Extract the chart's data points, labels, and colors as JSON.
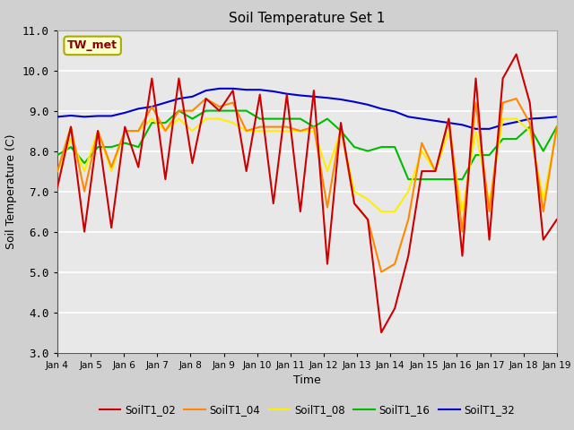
{
  "title": "Soil Temperature Set 1",
  "xlabel": "Time",
  "ylabel": "Soil Temperature (C)",
  "ylim": [
    3.0,
    11.0
  ],
  "yticks": [
    3.0,
    4.0,
    5.0,
    6.0,
    7.0,
    8.0,
    9.0,
    10.0,
    11.0
  ],
  "xtick_labels": [
    "Jan 4",
    "Jan 5",
    "Jan 6",
    "Jan 7",
    "Jan 8",
    "Jan 9",
    "Jan 10",
    "Jan 11",
    "Jan 12",
    "Jan 13",
    "Jan 14",
    "Jan 15",
    "Jan 16",
    "Jan 17",
    "Jan 18",
    "Jan 19"
  ],
  "annotation_text": "TW_met",
  "annotation_color": "#8B0000",
  "series_colors": {
    "SoilT1_02": "#cc0000",
    "SoilT1_04": "#ff8800",
    "SoilT1_08": "#ffee00",
    "SoilT1_16": "#00bb00",
    "SoilT1_32": "#0000cc"
  },
  "legend_labels": [
    "SoilT1_02",
    "SoilT1_04",
    "SoilT1_08",
    "SoilT1_16",
    "SoilT1_32"
  ],
  "fig_bg_color": "#d0d0d0",
  "plot_bg_color": "#e8e8e8",
  "SoilT1_02": [
    7.1,
    8.6,
    6.0,
    8.5,
    6.1,
    8.6,
    7.6,
    9.8,
    7.3,
    9.8,
    7.7,
    9.3,
    9.0,
    9.5,
    7.5,
    9.4,
    6.7,
    9.4,
    6.5,
    9.5,
    5.2,
    8.7,
    6.7,
    6.3,
    3.5,
    4.1,
    5.4,
    7.5,
    7.5,
    8.8,
    5.4,
    9.8,
    5.8,
    9.8,
    10.4,
    9.2,
    5.8,
    6.3
  ],
  "SoilT1_04": [
    7.5,
    8.6,
    7.0,
    8.5,
    7.6,
    8.5,
    8.5,
    9.1,
    8.5,
    9.0,
    9.0,
    9.3,
    9.1,
    9.2,
    8.5,
    8.6,
    8.6,
    8.6,
    8.5,
    8.6,
    6.6,
    8.6,
    6.7,
    6.3,
    5.0,
    5.2,
    6.3,
    8.2,
    7.5,
    8.8,
    6.0,
    9.2,
    6.5,
    9.2,
    9.3,
    8.7,
    6.5,
    8.6
  ],
  "SoilT1_08": [
    7.5,
    8.3,
    7.5,
    8.5,
    7.5,
    8.5,
    8.5,
    8.8,
    8.5,
    8.8,
    8.5,
    8.8,
    8.8,
    8.7,
    8.5,
    8.5,
    8.5,
    8.5,
    8.5,
    8.5,
    7.5,
    8.5,
    7.0,
    6.8,
    6.5,
    6.5,
    7.0,
    8.0,
    7.5,
    8.5,
    6.5,
    8.5,
    6.7,
    8.8,
    8.8,
    8.5,
    6.8,
    8.5
  ],
  "SoilT1_16": [
    7.9,
    8.1,
    7.7,
    8.1,
    8.1,
    8.2,
    8.1,
    8.7,
    8.7,
    9.0,
    8.8,
    9.0,
    9.0,
    9.0,
    9.0,
    8.8,
    8.8,
    8.8,
    8.8,
    8.6,
    8.8,
    8.5,
    8.1,
    8.0,
    8.1,
    8.1,
    7.3,
    7.3,
    7.3,
    7.3,
    7.3,
    7.9,
    7.9,
    8.3,
    8.3,
    8.6,
    8.0,
    8.6
  ],
  "SoilT1_32": [
    8.85,
    8.88,
    8.85,
    8.87,
    8.87,
    8.95,
    9.05,
    9.1,
    9.2,
    9.3,
    9.35,
    9.5,
    9.55,
    9.55,
    9.52,
    9.52,
    9.48,
    9.42,
    9.38,
    9.35,
    9.32,
    9.28,
    9.22,
    9.15,
    9.05,
    8.98,
    8.85,
    8.8,
    8.75,
    8.7,
    8.65,
    8.55,
    8.55,
    8.65,
    8.72,
    8.8,
    8.82,
    8.85
  ]
}
